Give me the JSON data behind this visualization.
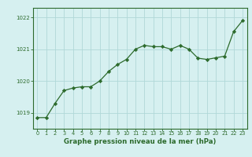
{
  "x": [
    0,
    1,
    2,
    3,
    4,
    5,
    6,
    7,
    8,
    9,
    10,
    11,
    12,
    13,
    14,
    15,
    16,
    17,
    18,
    19,
    20,
    21,
    22,
    23
  ],
  "y": [
    1018.85,
    1018.85,
    1019.3,
    1019.7,
    1019.78,
    1019.82,
    1019.82,
    1020.0,
    1020.3,
    1020.52,
    1020.68,
    1021.0,
    1021.12,
    1021.08,
    1021.08,
    1021.0,
    1021.12,
    1021.0,
    1020.72,
    1020.68,
    1020.73,
    1020.78,
    1021.55,
    1021.9
  ],
  "line_color": "#2d6b2d",
  "marker_color": "#2d6b2d",
  "bg_color": "#d6f0f0",
  "grid_color": "#b0d8d8",
  "axis_line_color": "#2d6b2d",
  "tick_label_color": "#2d6b2d",
  "xlabel": "Graphe pression niveau de la mer (hPa)",
  "xlabel_color": "#2d6b2d",
  "ylim": [
    1018.5,
    1022.3
  ],
  "yticks": [
    1019,
    1020,
    1021,
    1022
  ],
  "xlim": [
    -0.5,
    23.5
  ],
  "xticks": [
    0,
    1,
    2,
    3,
    4,
    5,
    6,
    7,
    8,
    9,
    10,
    11,
    12,
    13,
    14,
    15,
    16,
    17,
    18,
    19,
    20,
    21,
    22,
    23
  ]
}
